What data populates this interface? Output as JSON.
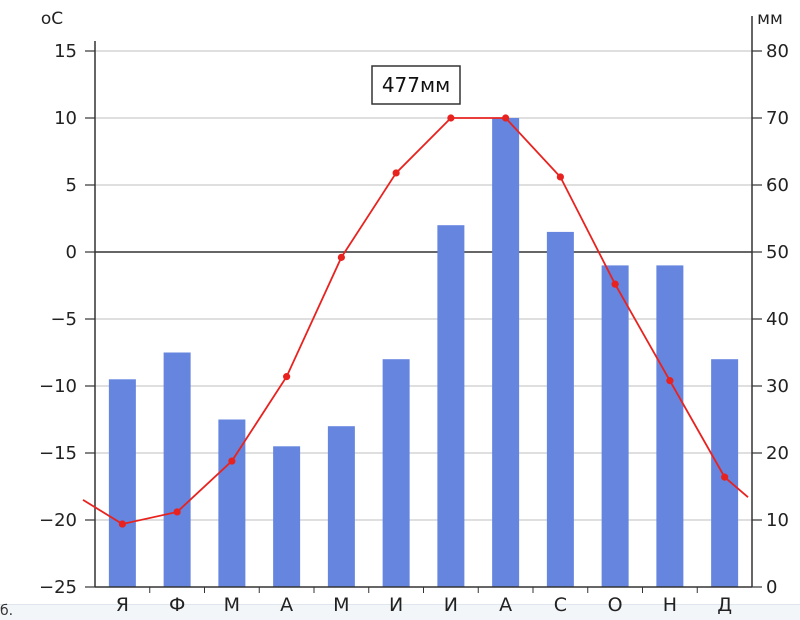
{
  "chart_data": {
    "type": "bar+line",
    "categories": [
      "Я",
      "Ф",
      "М",
      "А",
      "М",
      "И",
      "И",
      "А",
      "С",
      "О",
      "Н",
      "Д"
    ],
    "precipitation_mm": [
      31,
      35,
      25,
      21,
      24,
      34,
      54,
      70,
      53,
      48,
      48,
      34
    ],
    "temperature_c": [
      -20.3,
      -19.4,
      -15.6,
      -9.3,
      -0.4,
      5.9,
      10.0,
      10.0,
      5.6,
      -2.4,
      -9.6,
      -16.8
    ],
    "temperature_line_left_end": -18.5,
    "temperature_line_right_end": -18.3,
    "left_axis": {
      "unit": "oC",
      "min": -25,
      "max": 15,
      "ticks": [
        15,
        10,
        5,
        0,
        -5,
        -10,
        -15,
        -20,
        -25
      ],
      "tick_labels": [
        "15",
        "10",
        "5",
        "0",
        "−5",
        "−10",
        "−15",
        "−20",
        "−25"
      ]
    },
    "right_axis": {
      "unit": "мм",
      "min": 0,
      "max": 80,
      "ticks": [
        80,
        70,
        60,
        50,
        40,
        30,
        20,
        10,
        0
      ],
      "tick_labels": [
        "80",
        "70",
        "60",
        "50",
        "40",
        "30",
        "20",
        "10",
        "0"
      ]
    },
    "annotation": "477мм",
    "grid": true,
    "colors": {
      "bars": "#6585df",
      "line": "#e8231f",
      "grid": "#bfbfbf",
      "zero_line": "#333333"
    }
  },
  "footer_text": "б."
}
